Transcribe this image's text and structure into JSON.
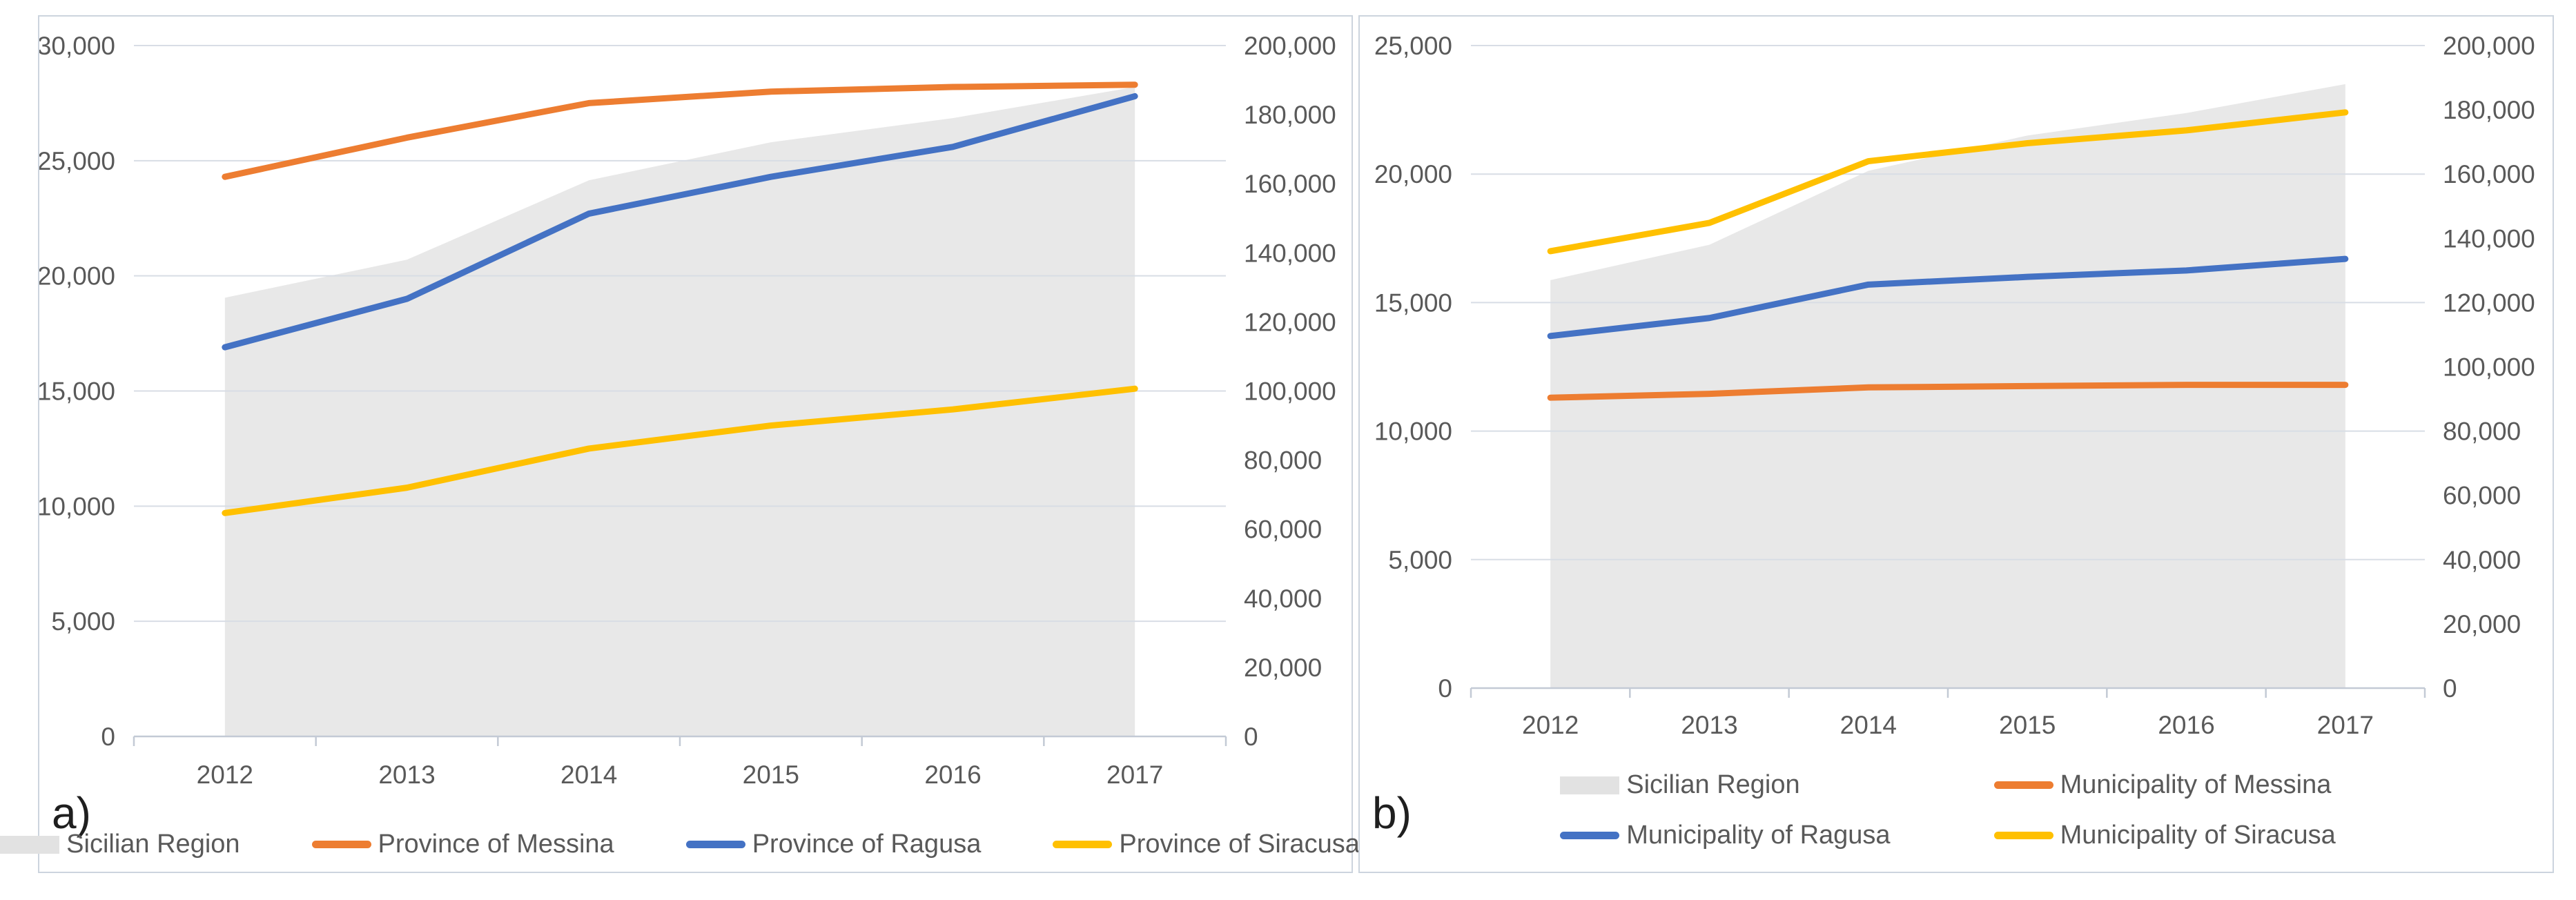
{
  "figure": {
    "description": "Two side-by-side combo charts comparing tourism volumes 2012-2017, Sicilian Region (area, secondary axis) vs provinces/municipalities (lines, primary axis)",
    "panel_a_label": "a)",
    "panel_b_label": "b)"
  },
  "chart_data": [
    {
      "panel_label": "a)",
      "type": "area+line combo, dual y-axes",
      "categories": [
        "2012",
        "2013",
        "2014",
        "2015",
        "2016",
        "2017"
      ],
      "series": [
        {
          "name": "Sicilian Region",
          "type": "area",
          "axis": "right",
          "color": "#e8e8e8",
          "values": [
            127000,
            138000,
            161000,
            172000,
            179000,
            188000
          ]
        },
        {
          "name": "Province of Messina",
          "type": "line",
          "axis": "left",
          "color": "#ed7d31",
          "values": [
            24300,
            26000,
            27500,
            28000,
            28200,
            28300
          ]
        },
        {
          "name": "Province of Ragusa",
          "type": "line",
          "axis": "left",
          "color": "#4472c4",
          "values": [
            16900,
            19000,
            22700,
            24300,
            25600,
            27800
          ]
        },
        {
          "name": "Province of Siracusa",
          "type": "line",
          "axis": "left",
          "color": "#ffc000",
          "values": [
            9700,
            10800,
            12500,
            13500,
            14200,
            15100
          ]
        }
      ],
      "left_axis": {
        "min": 0,
        "max": 30000,
        "ticks": [
          "0",
          "5,000",
          "10,000",
          "15,000",
          "20,000",
          "25,000",
          "30,000"
        ]
      },
      "right_axis": {
        "min": 0,
        "max": 200000,
        "ticks": [
          "0",
          "20,000",
          "40,000",
          "60,000",
          "80,000",
          "100,000",
          "120,000",
          "140,000",
          "160,000",
          "180,000",
          "200,000"
        ]
      },
      "grid": "horizontal gridlines at left-axis ticks",
      "legend_position": "bottom, single row"
    },
    {
      "panel_label": "b)",
      "type": "area+line combo, dual y-axes",
      "categories": [
        "2012",
        "2013",
        "2014",
        "2015",
        "2016",
        "2017"
      ],
      "series": [
        {
          "name": "Sicilian Region",
          "type": "area",
          "axis": "right",
          "color": "#e8e8e8",
          "values": [
            127000,
            138000,
            161000,
            172000,
            179000,
            188000
          ]
        },
        {
          "name": "Municipality of Messina",
          "type": "line",
          "axis": "left",
          "color": "#ed7d31",
          "values": [
            11300,
            11450,
            11700,
            11750,
            11800,
            11800
          ]
        },
        {
          "name": "Municipality of Ragusa",
          "type": "line",
          "axis": "left",
          "color": "#4472c4",
          "values": [
            13700,
            14400,
            15700,
            16000,
            16250,
            16700
          ]
        },
        {
          "name": "Municipality of Siracusa",
          "type": "line",
          "axis": "left",
          "color": "#ffc000",
          "values": [
            17000,
            18100,
            20500,
            21200,
            21700,
            22400
          ]
        }
      ],
      "left_axis": {
        "min": 0,
        "max": 25000,
        "ticks": [
          "0",
          "5,000",
          "10,000",
          "15,000",
          "20,000",
          "25,000"
        ]
      },
      "right_axis": {
        "min": 0,
        "max": 200000,
        "ticks": [
          "0",
          "20,000",
          "40,000",
          "60,000",
          "80,000",
          "100,000",
          "120,000",
          "140,000",
          "160,000",
          "180,000",
          "200,000"
        ]
      },
      "grid": "horizontal gridlines at left-axis ticks",
      "legend_position": "bottom, two rows of two"
    }
  ],
  "colors": {
    "accent_orange": "#ed7d31",
    "accent_blue": "#4472c4",
    "accent_yellow": "#ffc000",
    "area_gray": "#e8e8e8",
    "gridline": "#d8dde5",
    "axis_line": "#c3cad5",
    "tick_text": "#595959",
    "panel_border": "#ccd4de"
  }
}
